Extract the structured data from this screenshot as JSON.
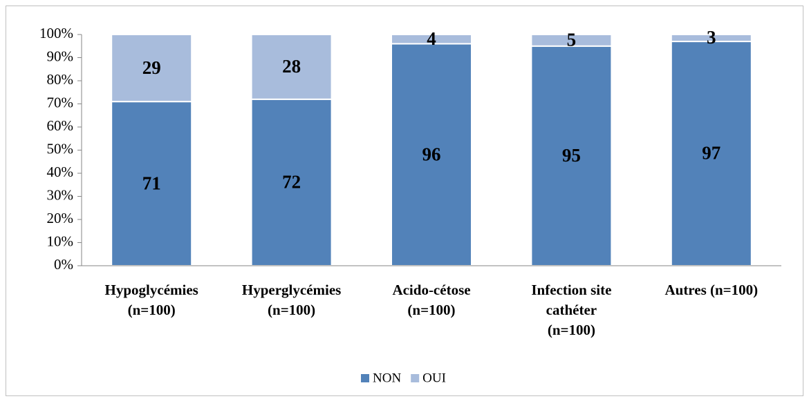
{
  "chart_data": {
    "type": "stacked_bar",
    "categories": [
      [
        "Hypoglycémies",
        "(n=100)"
      ],
      [
        "Hyperglycémies",
        "(n=100)"
      ],
      [
        "Acido-cétose",
        "(n=100)"
      ],
      [
        "Infection site",
        "cathéter",
        "(n=100)"
      ],
      [
        "Autres (n=100)"
      ]
    ],
    "series": [
      {
        "name": "NON",
        "color": "#5282b9",
        "values": [
          71,
          72,
          96,
          95,
          97
        ]
      },
      {
        "name": "OUI",
        "color": "#a8bcdc",
        "values": [
          29,
          28,
          4,
          5,
          3
        ]
      }
    ],
    "ylim": [
      0,
      100
    ],
    "yticks": [
      {
        "value": 0,
        "label": "0%"
      },
      {
        "value": 10,
        "label": "10%"
      },
      {
        "value": 20,
        "label": "20%"
      },
      {
        "value": 30,
        "label": "30%"
      },
      {
        "value": 40,
        "label": "40%"
      },
      {
        "value": 50,
        "label": "50%"
      },
      {
        "value": 60,
        "label": "60%"
      },
      {
        "value": 70,
        "label": "70%"
      },
      {
        "value": 80,
        "label": "80%"
      },
      {
        "value": 90,
        "label": "90%"
      },
      {
        "value": 100,
        "label": "100%"
      }
    ],
    "grid": false,
    "legend": "bottom"
  }
}
